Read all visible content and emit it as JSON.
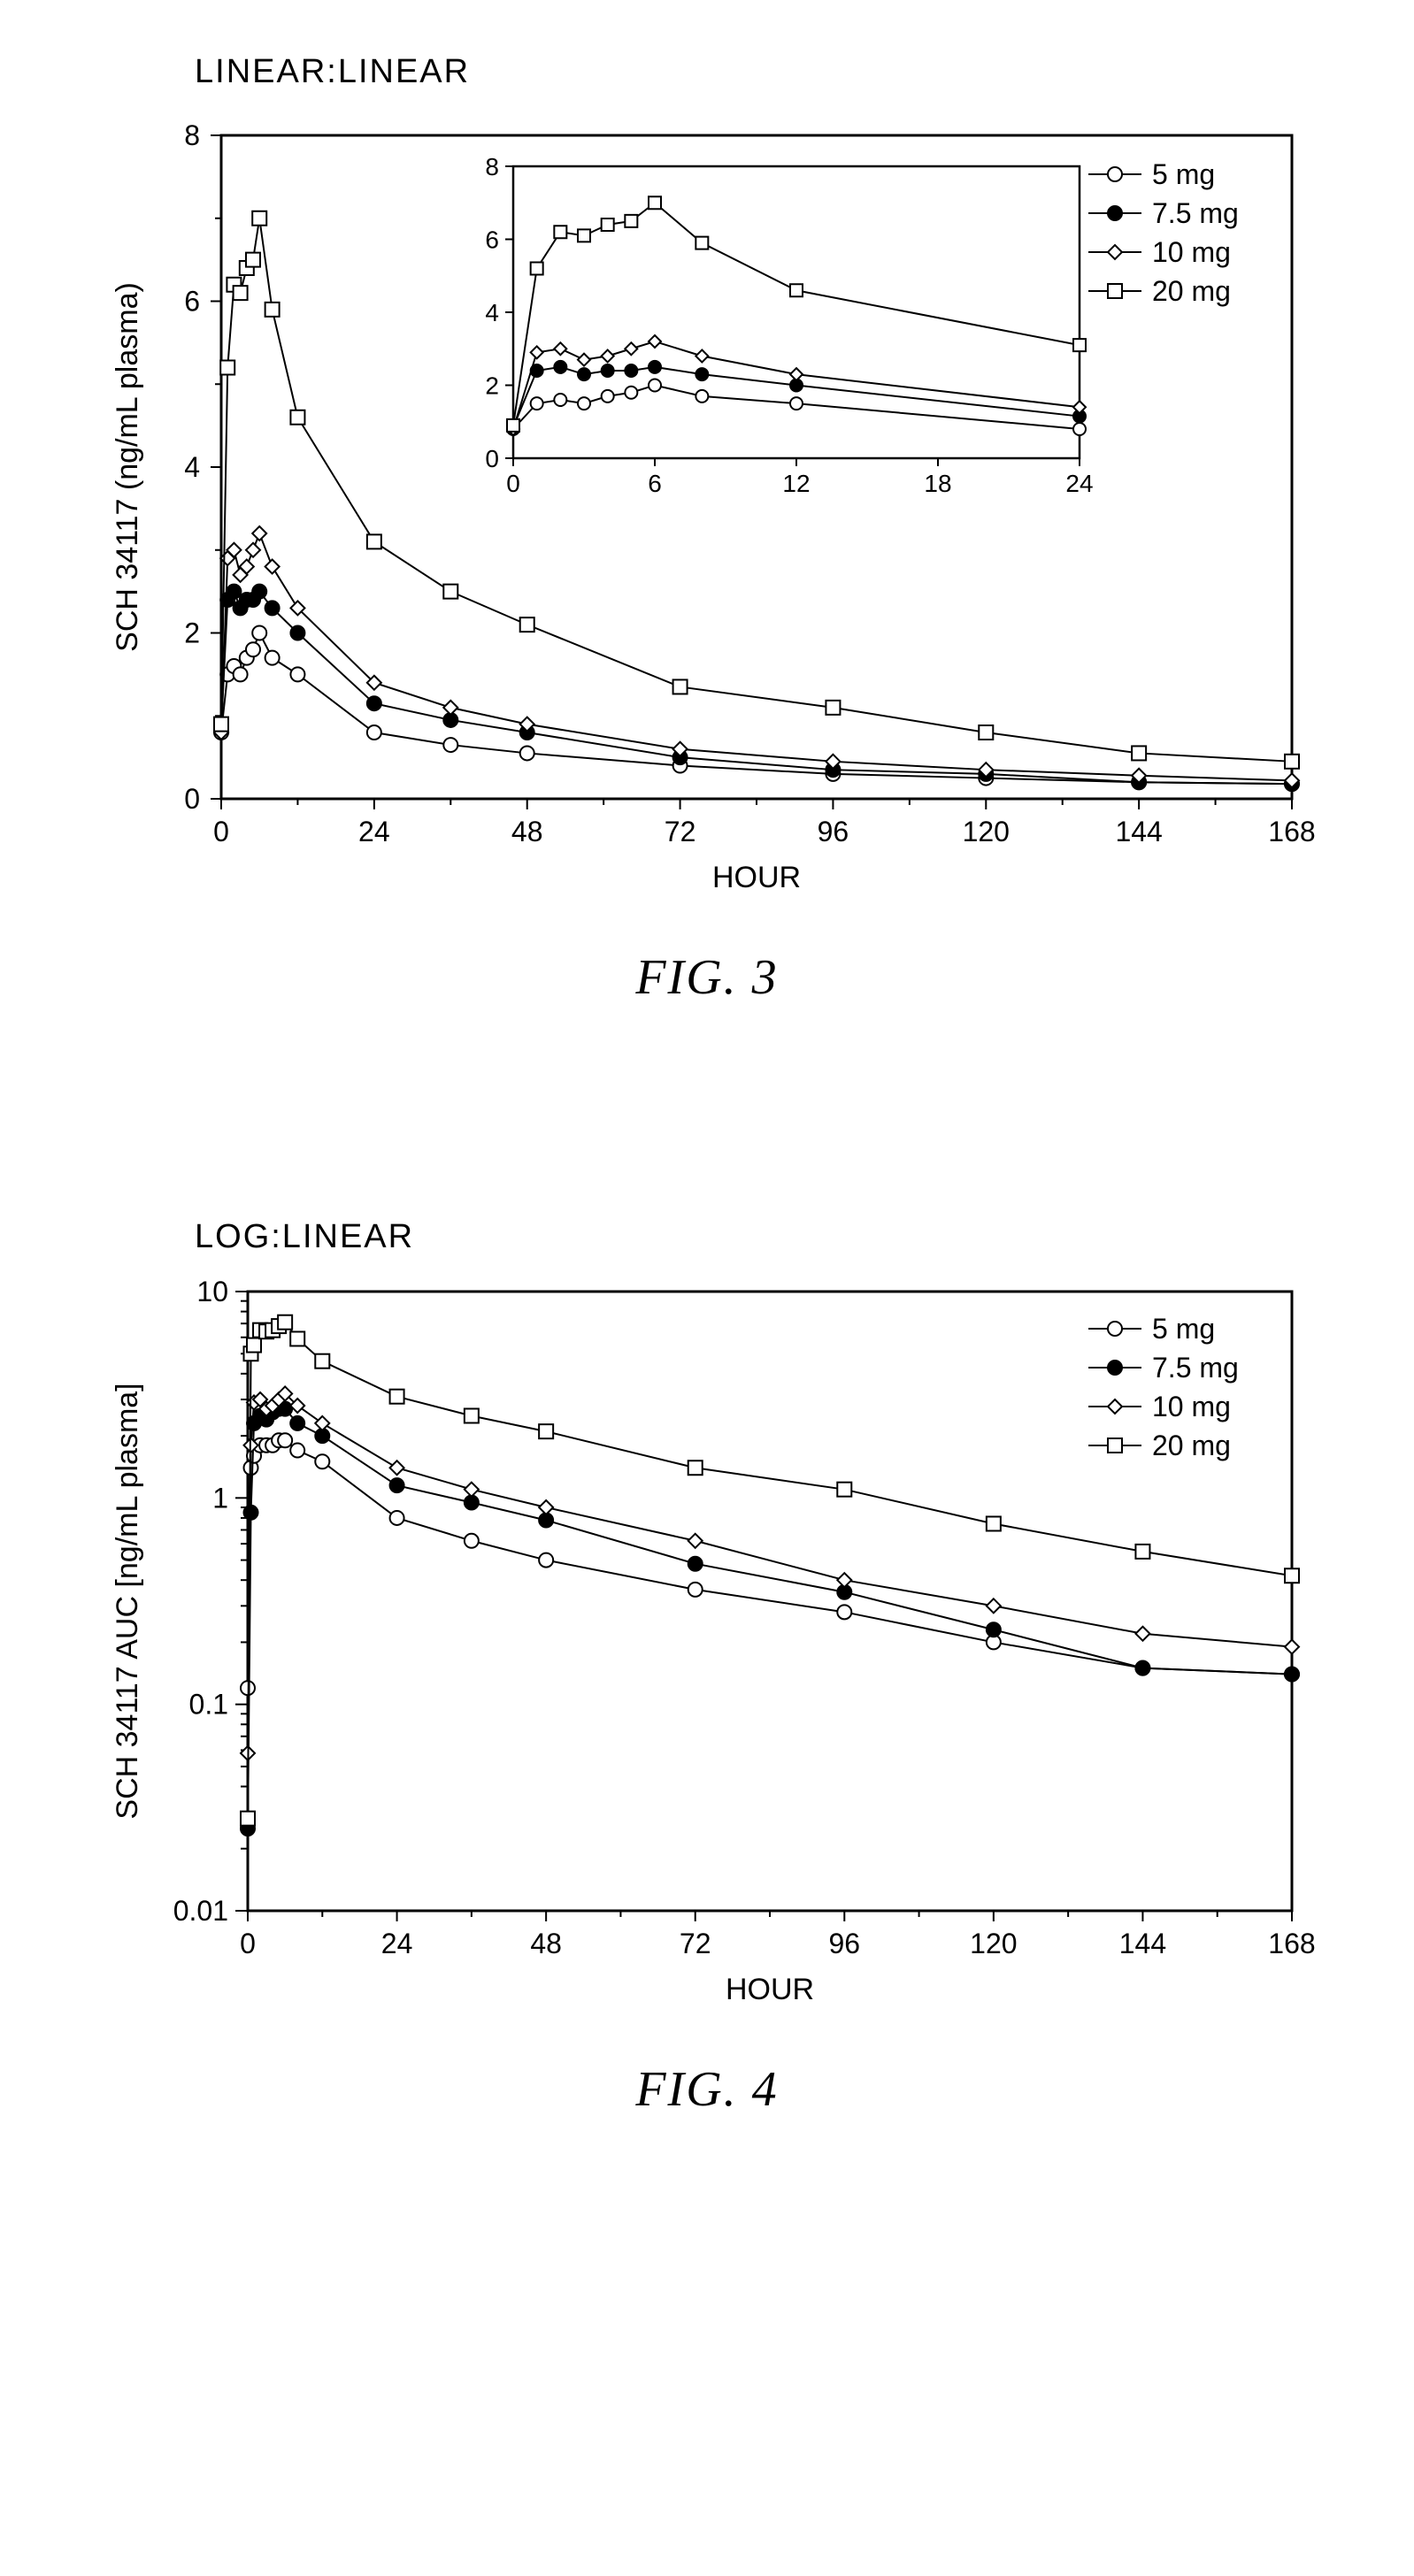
{
  "fig3": {
    "topLabel": "LINEAR:LINEAR",
    "caption": "FIG. 3",
    "main": {
      "type": "line-scatter",
      "xlabel": "HOUR",
      "ylabel": "SCH 34117 (ng/mL plasma)",
      "xlim": [
        0,
        168
      ],
      "xtick_step": 24,
      "ylim": [
        0,
        8
      ],
      "ytick_step": 2,
      "label_fontsize": 34,
      "tick_fontsize": 32,
      "background_color": "#ffffff",
      "axis_color": "#000000",
      "line_width": 2,
      "series": [
        {
          "label": "5 mg",
          "marker": "open-circle",
          "fill": "#ffffff",
          "stroke": "#000000",
          "x": [
            0,
            1,
            2,
            3,
            4,
            5,
            6,
            8,
            12,
            24,
            36,
            48,
            72,
            96,
            120,
            144,
            168
          ],
          "y": [
            0.8,
            1.5,
            1.6,
            1.5,
            1.7,
            1.8,
            2.0,
            1.7,
            1.5,
            0.8,
            0.65,
            0.55,
            0.4,
            0.3,
            0.25,
            0.2,
            0.18
          ]
        },
        {
          "label": "7.5 mg",
          "marker": "filled-circle",
          "fill": "#000000",
          "stroke": "#000000",
          "x": [
            0,
            1,
            2,
            3,
            4,
            5,
            6,
            8,
            12,
            24,
            36,
            48,
            72,
            96,
            120,
            144,
            168
          ],
          "y": [
            0.85,
            2.4,
            2.5,
            2.3,
            2.4,
            2.4,
            2.5,
            2.3,
            2.0,
            1.15,
            0.95,
            0.8,
            0.5,
            0.35,
            0.3,
            0.2,
            0.18
          ]
        },
        {
          "label": "10 mg",
          "marker": "open-diamond",
          "fill": "#ffffff",
          "stroke": "#000000",
          "x": [
            0,
            1,
            2,
            3,
            4,
            5,
            6,
            8,
            12,
            24,
            36,
            48,
            72,
            96,
            120,
            144,
            168
          ],
          "y": [
            0.8,
            2.9,
            3.0,
            2.7,
            2.8,
            3.0,
            3.2,
            2.8,
            2.3,
            1.4,
            1.1,
            0.9,
            0.6,
            0.45,
            0.35,
            0.28,
            0.22
          ]
        },
        {
          "label": "20 mg",
          "marker": "open-square",
          "fill": "#ffffff",
          "stroke": "#000000",
          "x": [
            0,
            1,
            2,
            3,
            4,
            5,
            6,
            8,
            12,
            24,
            36,
            48,
            72,
            96,
            120,
            144,
            168
          ],
          "y": [
            0.9,
            5.2,
            6.2,
            6.1,
            6.4,
            6.5,
            7.0,
            5.9,
            4.6,
            3.1,
            2.5,
            2.1,
            1.35,
            1.1,
            0.8,
            0.55,
            0.45
          ]
        }
      ]
    },
    "inset": {
      "type": "line-scatter",
      "xlim": [
        0,
        24
      ],
      "xtick_step": 6,
      "ylim": [
        0,
        8
      ],
      "ytick_step": 2,
      "tick_fontsize": 28,
      "series": [
        {
          "marker": "open-circle",
          "fill": "#ffffff",
          "stroke": "#000000",
          "x": [
            0,
            1,
            2,
            3,
            4,
            5,
            6,
            8,
            12,
            24
          ],
          "y": [
            0.8,
            1.5,
            1.6,
            1.5,
            1.7,
            1.8,
            2.0,
            1.7,
            1.5,
            0.8
          ]
        },
        {
          "marker": "filled-circle",
          "fill": "#000000",
          "stroke": "#000000",
          "x": [
            0,
            1,
            2,
            3,
            4,
            5,
            6,
            8,
            12,
            24
          ],
          "y": [
            0.85,
            2.4,
            2.5,
            2.3,
            2.4,
            2.4,
            2.5,
            2.3,
            2.0,
            1.15
          ]
        },
        {
          "marker": "open-diamond",
          "fill": "#ffffff",
          "stroke": "#000000",
          "x": [
            0,
            1,
            2,
            3,
            4,
            5,
            6,
            8,
            12,
            24
          ],
          "y": [
            0.8,
            2.9,
            3.0,
            2.7,
            2.8,
            3.0,
            3.2,
            2.8,
            2.3,
            1.4
          ]
        },
        {
          "marker": "open-square",
          "fill": "#ffffff",
          "stroke": "#000000",
          "x": [
            0,
            1,
            2,
            3,
            4,
            5,
            6,
            8,
            12,
            24
          ],
          "y": [
            0.9,
            5.2,
            6.2,
            6.1,
            6.4,
            6.5,
            7.0,
            5.9,
            4.6,
            3.1
          ]
        }
      ]
    },
    "legend": {
      "items": [
        {
          "label": "5 mg",
          "marker": "open-circle"
        },
        {
          "label": "7.5 mg",
          "marker": "filled-circle"
        },
        {
          "label": "10 mg",
          "marker": "open-diamond"
        },
        {
          "label": "20 mg",
          "marker": "open-square"
        }
      ],
      "fontsize": 32
    }
  },
  "fig4": {
    "topLabel": "LOG:LINEAR",
    "caption": "FIG. 4",
    "main": {
      "type": "line-scatter-logy",
      "xlabel": "HOUR",
      "ylabel": "SCH 34117 AUC [ng/mL plasma]",
      "xlim": [
        0,
        168
      ],
      "xtick_step": 24,
      "ylim": [
        0.01,
        10
      ],
      "yticks": [
        0.01,
        0.1,
        1,
        10
      ],
      "label_fontsize": 34,
      "tick_fontsize": 32,
      "background_color": "#ffffff",
      "axis_color": "#000000",
      "line_width": 2,
      "series": [
        {
          "label": "5 mg",
          "marker": "open-circle",
          "fill": "#ffffff",
          "stroke": "#000000",
          "x": [
            0,
            0.5,
            1,
            2,
            3,
            4,
            5,
            6,
            8,
            12,
            24,
            36,
            48,
            72,
            96,
            120,
            144,
            168
          ],
          "y": [
            0.12,
            1.4,
            1.6,
            1.8,
            1.8,
            1.8,
            1.9,
            1.9,
            1.7,
            1.5,
            0.8,
            0.62,
            0.5,
            0.36,
            0.28,
            0.2,
            0.15,
            0.14
          ]
        },
        {
          "label": "7.5 mg",
          "marker": "filled-circle",
          "fill": "#000000",
          "stroke": "#000000",
          "x": [
            0,
            0.5,
            1,
            2,
            3,
            4,
            5,
            6,
            8,
            12,
            24,
            36,
            48,
            72,
            96,
            120,
            144,
            168
          ],
          "y": [
            0.025,
            0.85,
            2.3,
            2.5,
            2.4,
            2.6,
            2.7,
            2.7,
            2.3,
            2.0,
            1.15,
            0.95,
            0.78,
            0.48,
            0.35,
            0.23,
            0.15,
            0.14
          ]
        },
        {
          "label": "10 mg",
          "marker": "open-diamond",
          "fill": "#ffffff",
          "stroke": "#000000",
          "x": [
            0,
            0.5,
            1,
            2,
            3,
            4,
            5,
            6,
            8,
            12,
            24,
            36,
            48,
            72,
            96,
            120,
            144,
            168
          ],
          "y": [
            0.058,
            1.8,
            2.9,
            3.0,
            2.7,
            2.8,
            3.0,
            3.2,
            2.8,
            2.3,
            1.4,
            1.1,
            0.9,
            0.62,
            0.4,
            0.3,
            0.22,
            0.19
          ]
        },
        {
          "label": "20 mg",
          "marker": "open-square",
          "fill": "#ffffff",
          "stroke": "#000000",
          "x": [
            0,
            0.5,
            1,
            2,
            3,
            4,
            5,
            6,
            8,
            12,
            24,
            36,
            48,
            72,
            96,
            120,
            144,
            168
          ],
          "y": [
            0.028,
            5.0,
            5.5,
            6.5,
            6.4,
            6.5,
            6.8,
            7.1,
            5.9,
            4.6,
            3.1,
            2.5,
            2.1,
            1.4,
            1.1,
            0.75,
            0.55,
            0.42
          ]
        }
      ]
    },
    "legend": {
      "items": [
        {
          "label": "5 mg",
          "marker": "open-circle"
        },
        {
          "label": "7.5 mg",
          "marker": "filled-circle"
        },
        {
          "label": "10 mg",
          "marker": "open-diamond"
        },
        {
          "label": "20 mg",
          "marker": "open-square"
        }
      ],
      "fontsize": 32
    }
  }
}
